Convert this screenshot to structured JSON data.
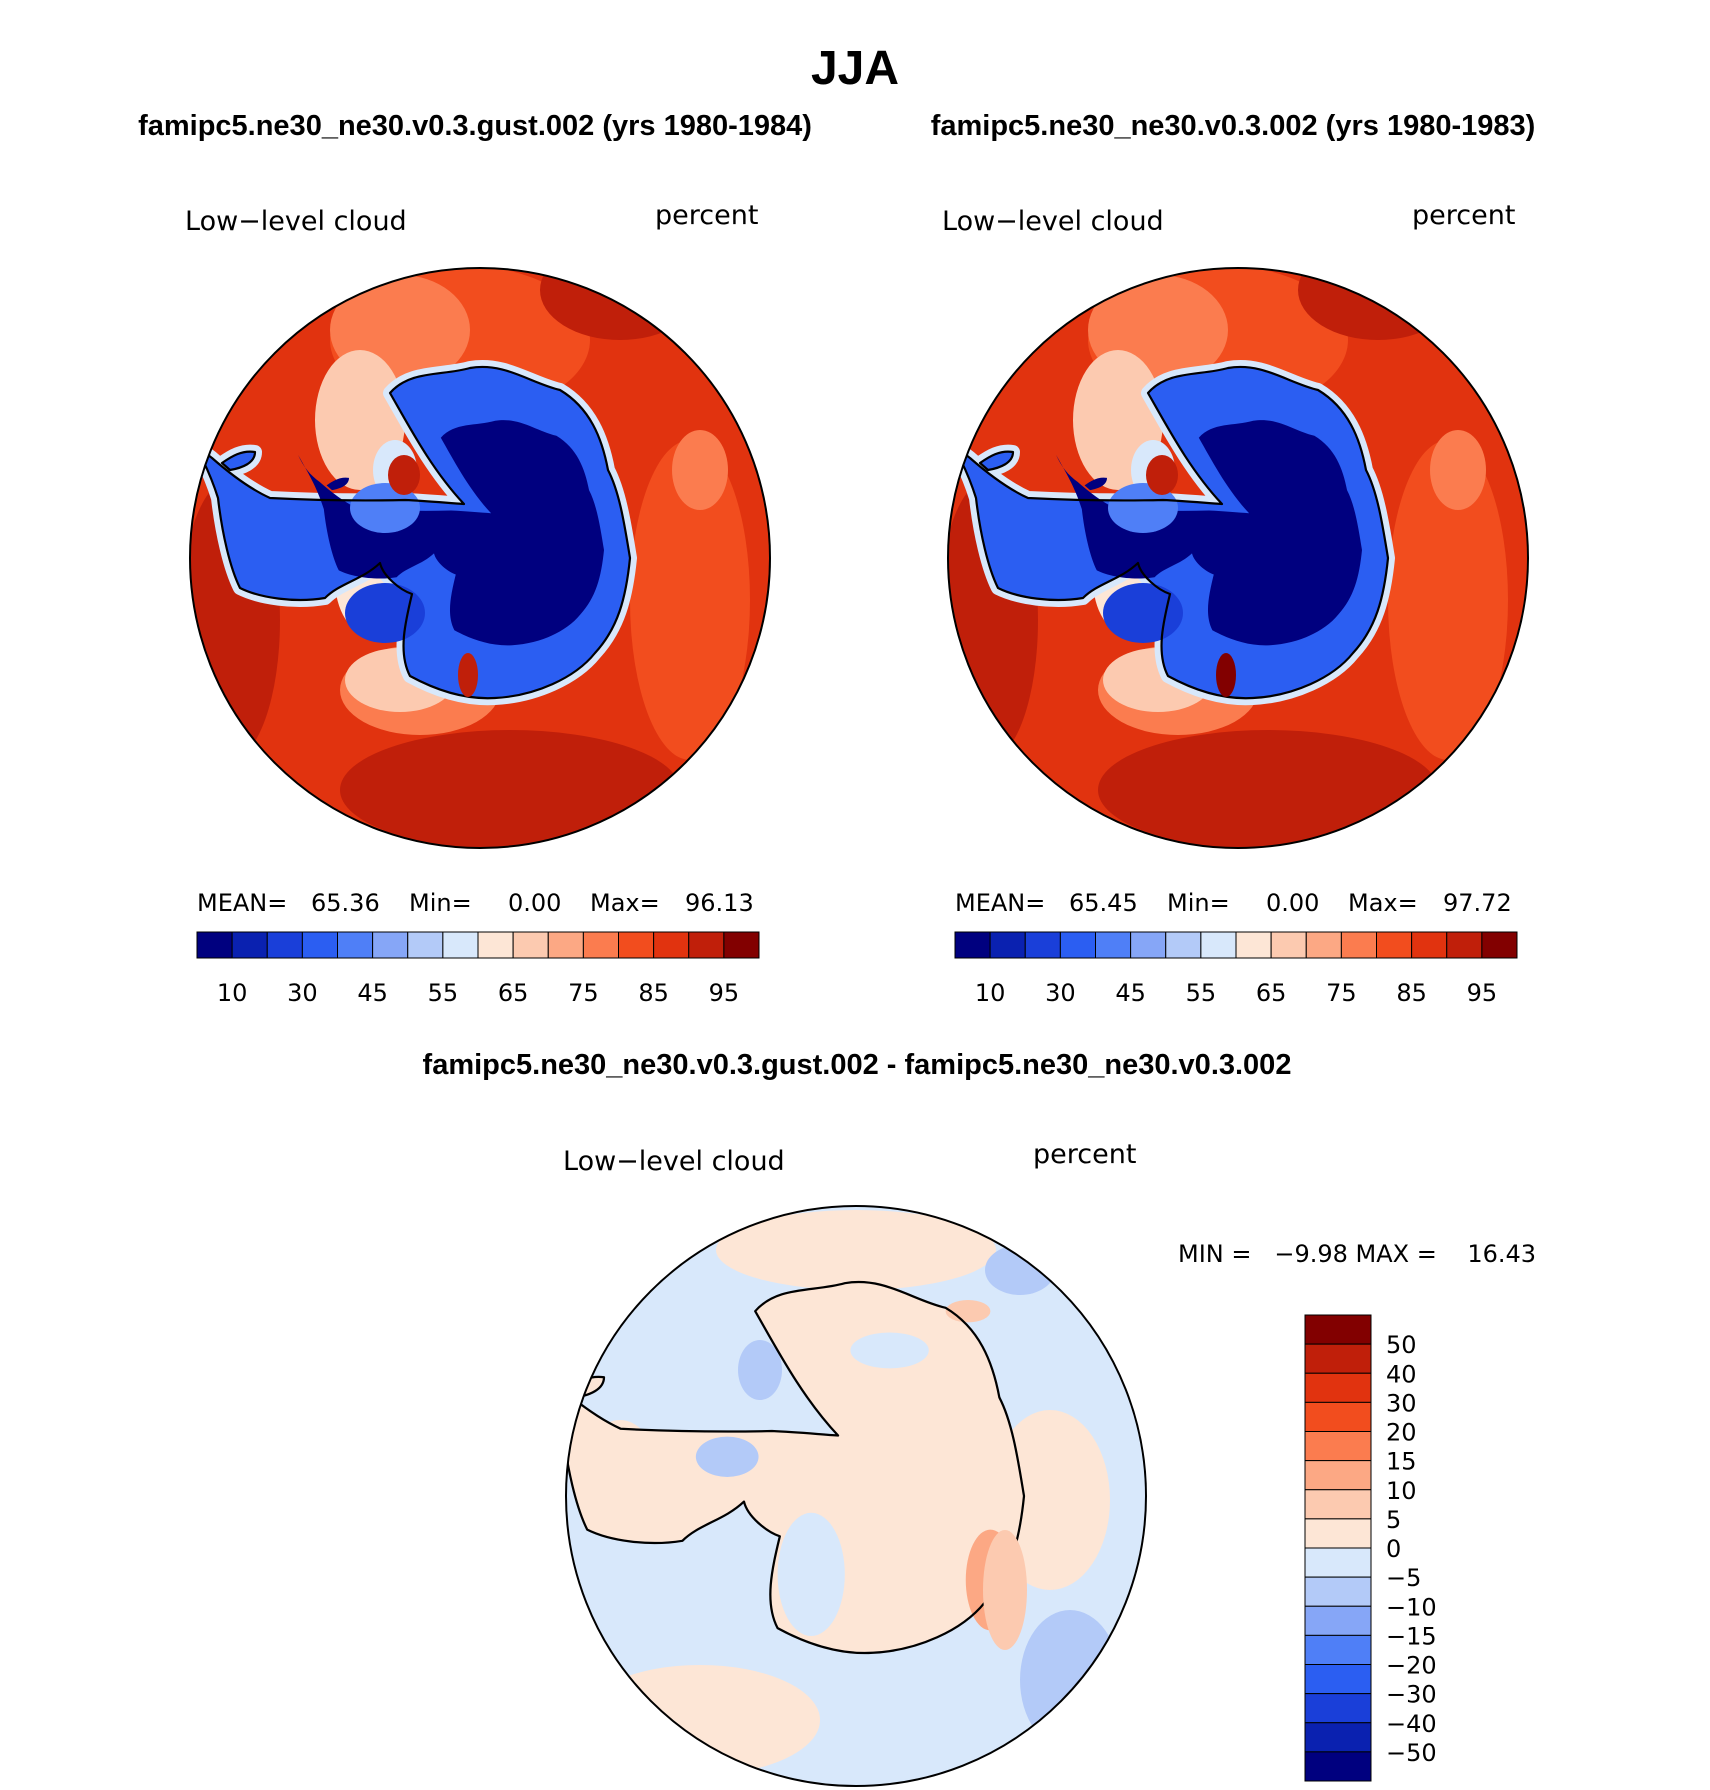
{
  "page_title": "JJA",
  "colors": {
    "ramp": [
      "#00007f",
      "#0a21b0",
      "#1a3fd9",
      "#2b5ef2",
      "#4f7ff7",
      "#86a6f7",
      "#b3caf8",
      "#d8e8fb",
      "#fde6d6",
      "#fccab0",
      "#fca884",
      "#fb7c4f",
      "#f24d1e",
      "#e1330f",
      "#c01f0a",
      "#820000"
    ],
    "background": "#ffffff",
    "coastline": "#000000"
  },
  "chart_data": [
    {
      "type": "heatmap",
      "title": "famipc5.ne30_ne30.v0.3.gust.002 (yrs 1980-1984)",
      "variable": "Low−level cloud",
      "units": "percent",
      "projection": "south polar stereographic",
      "stats": {
        "mean_label": "MEAN=",
        "mean": "65.36",
        "min_label": "Min=",
        "min": "0.00",
        "max_label": "Max=",
        "max": "96.13"
      },
      "colorbar_labels": [
        "10",
        "30",
        "45",
        "55",
        "65",
        "75",
        "85",
        "95"
      ],
      "colorbar_orientation": "horizontal"
    },
    {
      "type": "heatmap",
      "title": "famipc5.ne30_ne30.v0.3.002 (yrs 1980-1983)",
      "variable": "Low−level cloud",
      "units": "percent",
      "projection": "south polar stereographic",
      "stats": {
        "mean_label": "MEAN=",
        "mean": "65.45",
        "min_label": "Min=",
        "min": "0.00",
        "max_label": "Max=",
        "max": "97.72"
      },
      "colorbar_labels": [
        "10",
        "30",
        "45",
        "55",
        "65",
        "75",
        "85",
        "95"
      ],
      "colorbar_orientation": "horizontal"
    },
    {
      "type": "heatmap",
      "title": "famipc5.ne30_ne30.v0.3.gust.002 - famipc5.ne30_ne30.v0.3.002",
      "variable": "Low−level cloud",
      "units": "percent",
      "projection": "south polar stereographic",
      "stats_text": "MIN =   −9.98 MAX =    16.43",
      "colorbar_labels": [
        "50",
        "40",
        "30",
        "20",
        "15",
        "10",
        "5",
        "0",
        "−5",
        "−10",
        "−15",
        "−20",
        "−30",
        "−40",
        "−50"
      ],
      "colorbar_orientation": "vertical"
    }
  ]
}
